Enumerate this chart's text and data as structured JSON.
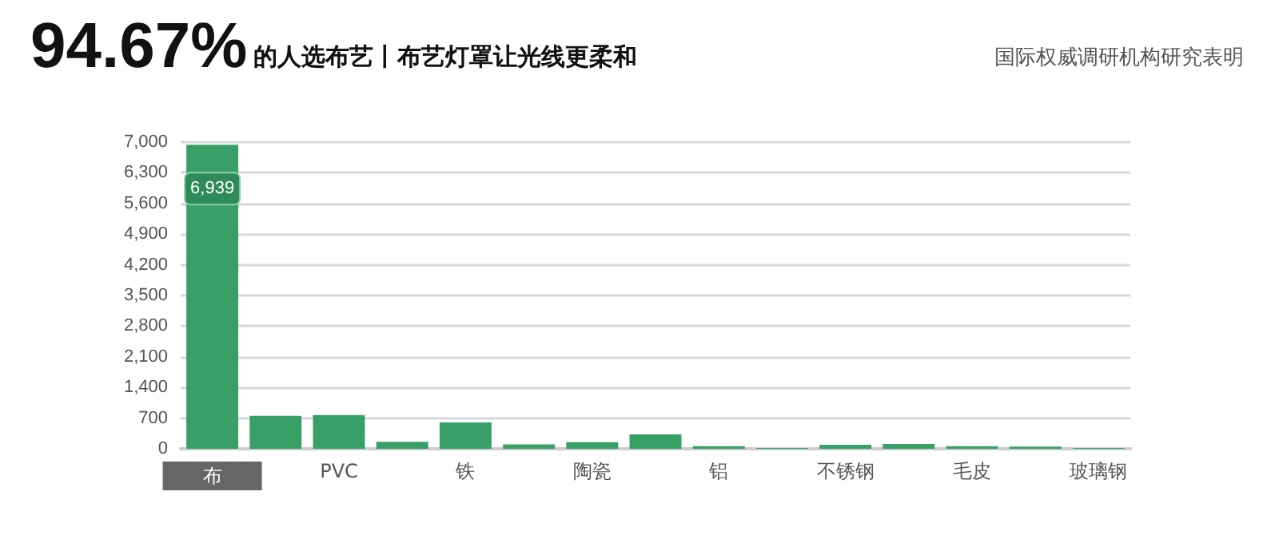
{
  "chart_data": {
    "type": "bar",
    "title": "94.67%",
    "subtitle": "的人选布艺丨布艺灯罩让光线更柔和",
    "annotations": [
      "国际权威调研机构研究表明"
    ],
    "categories": [
      "布",
      null,
      "PVC",
      null,
      "铁",
      null,
      "陶瓷",
      null,
      "铝",
      null,
      "不锈钢",
      null,
      "毛皮",
      null,
      "玻璃钢"
    ],
    "values": [
      6939,
      750,
      770,
      160,
      600,
      100,
      150,
      330,
      60,
      20,
      90,
      110,
      60,
      50,
      20
    ],
    "value_labels": [
      "6,939",
      null,
      null,
      null,
      null,
      null,
      null,
      null,
      null,
      null,
      null,
      null,
      null,
      null,
      null
    ],
    "color": "#38a066",
    "ylim": [
      0,
      7000
    ],
    "yticks": [
      {
        "value": 0,
        "label": "0"
      },
      {
        "value": 700,
        "label": "700"
      },
      {
        "value": 1400,
        "label": "1,400"
      },
      {
        "value": 2100,
        "label": "2,100"
      },
      {
        "value": 2800,
        "label": "2,800"
      },
      {
        "value": 3500,
        "label": "3,500"
      },
      {
        "value": 4200,
        "label": "4,200"
      },
      {
        "value": 4900,
        "label": "4,900"
      },
      {
        "value": 5600,
        "label": "5,600"
      },
      {
        "value": 6300,
        "label": "6,300"
      },
      {
        "value": 7000,
        "label": "7,000"
      }
    ],
    "grid": "y"
  }
}
